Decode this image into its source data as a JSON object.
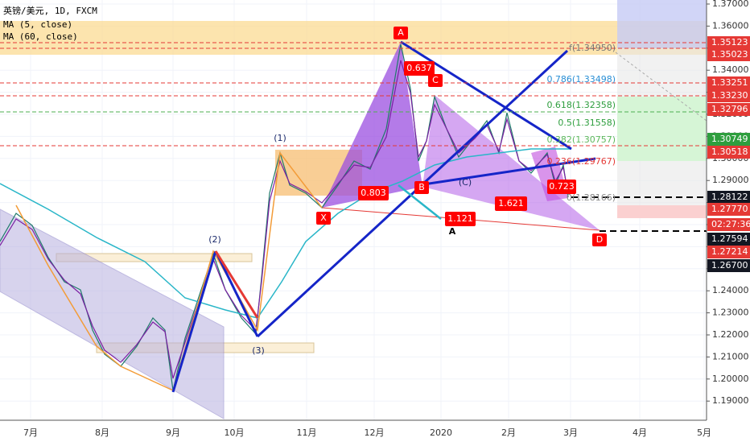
{
  "header": {
    "symbol": "英镑/美元, 1D, FXCM",
    "indicators": [
      "MA (5, close)",
      "MA (60, close)"
    ]
  },
  "price_axis": {
    "ticks": [
      "1.37000",
      "1.36000",
      "1.35000",
      "1.34000",
      "1.33000",
      "1.32000",
      "1.31000",
      "1.30000",
      "1.29000",
      "1.28000",
      "1.27000",
      "1.26000",
      "1.25000",
      "1.24000",
      "1.23000",
      "1.22000",
      "1.21000",
      "1.20000",
      "1.19000"
    ],
    "badges": [
      {
        "text": "1.35123",
        "color": "#e53935"
      },
      {
        "text": "1.35023",
        "color": "#e53935"
      },
      {
        "text": "1.33251",
        "color": "#e53935"
      },
      {
        "text": "1.33230",
        "color": "#e53935"
      },
      {
        "text": "1.32796",
        "color": "#e53935"
      },
      {
        "text": "1.30749",
        "color": "#2e9e3e"
      },
      {
        "text": "1.30518",
        "color": "#e53935"
      },
      {
        "text": "1.28122",
        "color": "#131722"
      },
      {
        "text": "1.27770",
        "color": "#e53935"
      },
      {
        "text": "02:27:36",
        "color": "#e53935"
      },
      {
        "text": "1.27594",
        "color": "#131722"
      },
      {
        "text": "1.27214",
        "color": "#e53935"
      },
      {
        "text": "1.26700",
        "color": "#131722"
      }
    ]
  },
  "time_axis": {
    "labels": [
      "7月",
      "8月",
      "9月",
      "10月",
      "11月",
      "12月",
      "2020",
      "2月",
      "3月",
      "4月",
      "5月"
    ]
  },
  "fibonacci": {
    "levels": [
      "f(1.34950)",
      "0.786(1.33498)",
      "0.618(1.32358)",
      "0.5(1.31558)",
      "0.382(1.30757)",
      "0.236(1.29767)",
      "0(1.28166)"
    ]
  },
  "pattern": {
    "points": [
      "A",
      "X",
      "B",
      "C",
      "D"
    ],
    "ratios": [
      "0.637",
      "0.803",
      "1.121",
      "1.621",
      "0.723"
    ]
  },
  "waves": [
    "(1)",
    "(2)",
    "(3)",
    "(C)"
  ],
  "big_label": "A"
}
